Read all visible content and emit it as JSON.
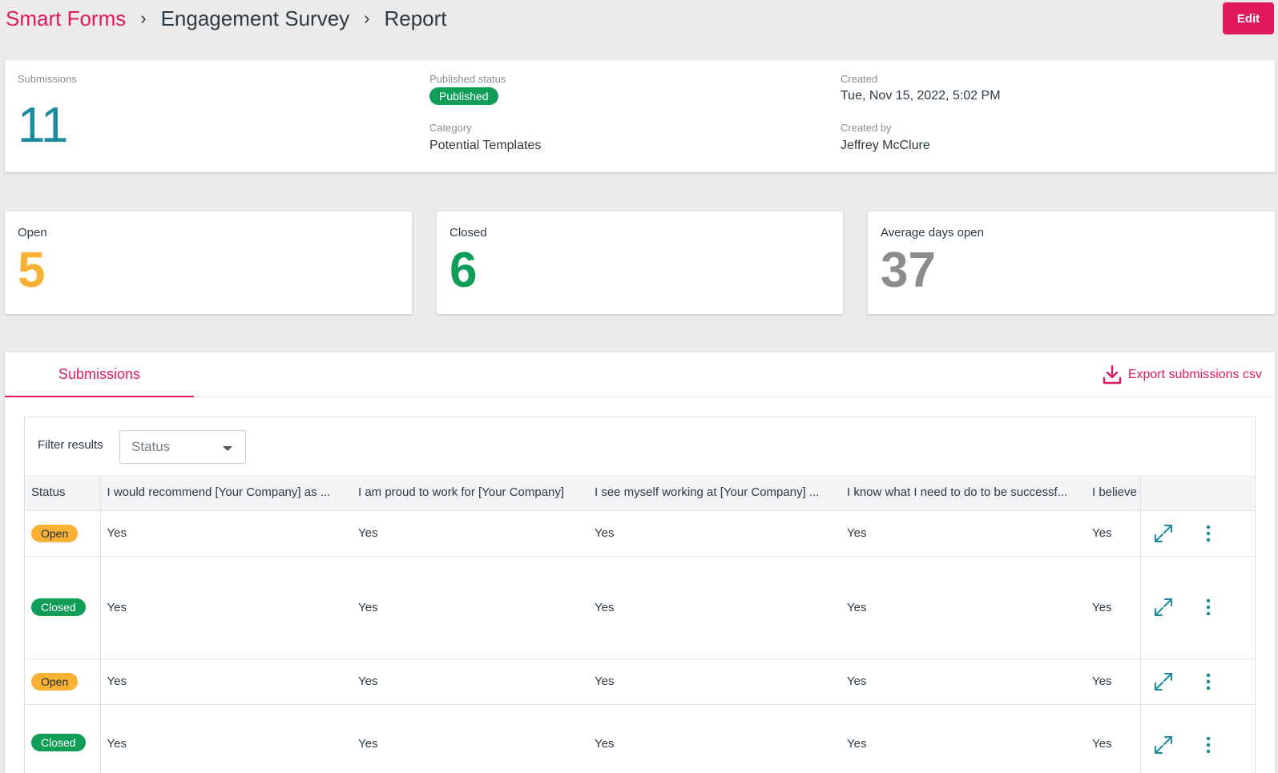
{
  "breadcrumb": {
    "root": "Smart Forms",
    "form": "Engagement Survey",
    "page": "Report",
    "separator": "›"
  },
  "header": {
    "edit_label": "Edit"
  },
  "summary": {
    "submissions_label": "Submissions",
    "submissions_count": "11",
    "published_status_label": "Published status",
    "published_status": "Published",
    "category_label": "Category",
    "category": "Potential Templates",
    "created_label": "Created",
    "created": "Tue, Nov 15, 2022, 5:02 PM",
    "created_by_label": "Created by",
    "created_by": "Jeffrey McClure"
  },
  "stats": {
    "open_label": "Open",
    "open_value": "5",
    "closed_label": "Closed",
    "closed_value": "6",
    "avg_label": "Average days open",
    "avg_value": "37"
  },
  "colors": {
    "accent": "#e0195f",
    "teal": "#1a8a9e",
    "open": "#f8b133",
    "closed": "#0f9d58",
    "avg": "#8c8c8c"
  },
  "submissions": {
    "tab_label": "Submissions",
    "export_label": "Export submissions csv",
    "filter_label": "Filter results",
    "filter_placeholder": "Status",
    "columns": [
      "Status",
      "I would recommend [Your Company] as ...",
      "I am proud to work for [Your Company]",
      "I see myself working at [Your Company] ...",
      "I know what I need to do to be successf...",
      "I believe"
    ],
    "rows": [
      {
        "status": "Open",
        "q1": "Yes",
        "q2": "Yes",
        "q3": "Yes",
        "q4": "Yes",
        "q5": "Yes"
      },
      {
        "status": "Closed",
        "q1": "Yes",
        "q2": "Yes",
        "q3": "Yes",
        "q4": "Yes",
        "q5": "Yes"
      },
      {
        "status": "Open",
        "q1": "Yes",
        "q2": "Yes",
        "q3": "Yes",
        "q4": "Yes",
        "q5": "Yes"
      },
      {
        "status": "Closed",
        "q1": "Yes",
        "q2": "Yes",
        "q3": "Yes",
        "q4": "Yes",
        "q5": "Yes"
      }
    ]
  }
}
